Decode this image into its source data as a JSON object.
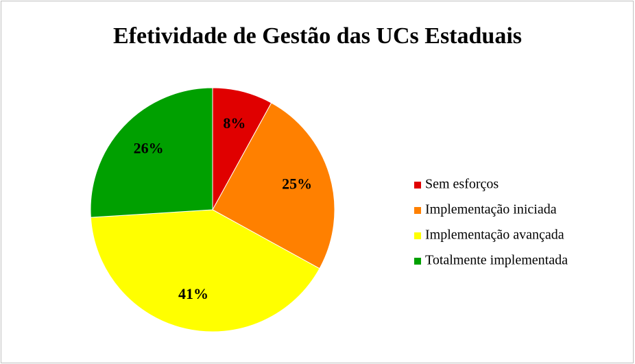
{
  "chart_data": {
    "type": "pie",
    "title": "Efetividade de Gestão das UCs Estaduais",
    "categories": [
      "Sem esforços",
      "Implementação iniciada",
      "Implementação avançada",
      "Totalmente implementada"
    ],
    "values": [
      8,
      25,
      41,
      26
    ],
    "value_labels": [
      "8%",
      "25%",
      "41%",
      "26%"
    ],
    "colors": [
      "#e00000",
      "#ff8000",
      "#ffff00",
      "#00a000"
    ],
    "legend": "right"
  }
}
